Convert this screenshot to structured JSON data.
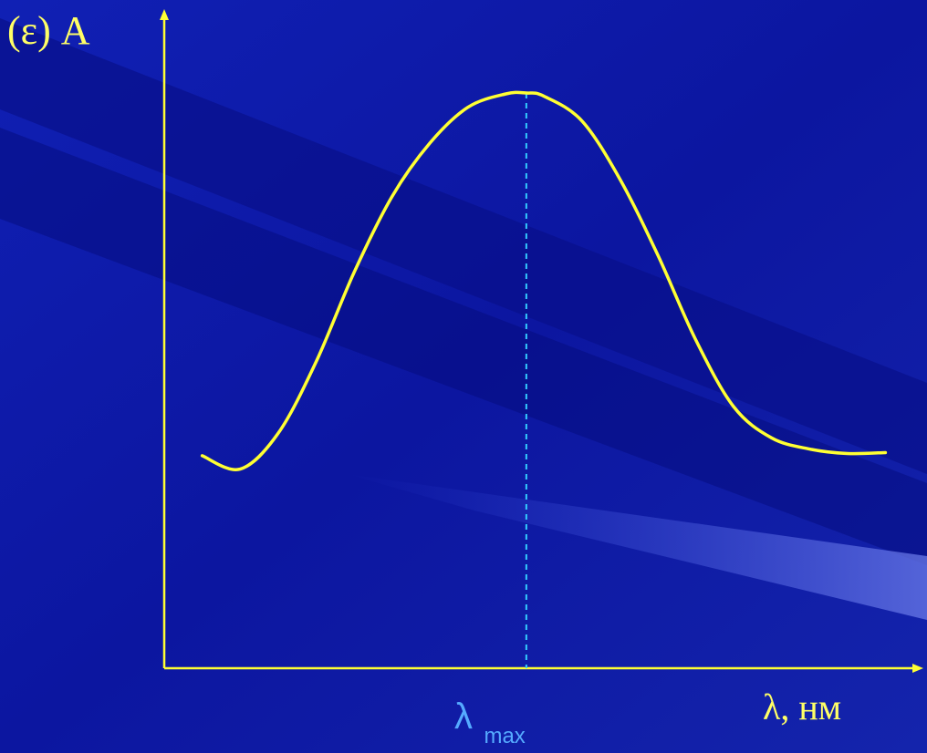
{
  "chart_data": {
    "type": "line",
    "ylabel": "(ε) A",
    "xlabel": "λ, нм",
    "xticks": [],
    "yticks": [],
    "peak_label": {
      "symbol": "λ",
      "subscript": "max"
    },
    "x_range": [
      0,
      100
    ],
    "y_range": [
      0,
      100
    ],
    "peak_x": 47.7,
    "series": [
      {
        "x": [
          5.0,
          10.0,
          15.0,
          20.0,
          25.0,
          30.0,
          35.0,
          40.0,
          45.0,
          47.7,
          50.0,
          55.0,
          60.0,
          65.0,
          70.0,
          75.0,
          80.0,
          85.0,
          90.0,
          95.0
        ],
        "y": [
          19.0,
          16.0,
          24.0,
          40.0,
          60.0,
          77.0,
          89.0,
          97.0,
          100.0,
          100.2,
          99.5,
          94.0,
          81.0,
          64.0,
          45.0,
          30.0,
          23.0,
          20.5,
          19.5,
          19.7
        ]
      }
    ],
    "colors": {
      "background": "#0f18a8",
      "axes": "#ffff33",
      "curve": "#ffff33",
      "peak_line": "#33ccff",
      "labels": "#ffff66",
      "peak_label": "#55aaff"
    }
  }
}
